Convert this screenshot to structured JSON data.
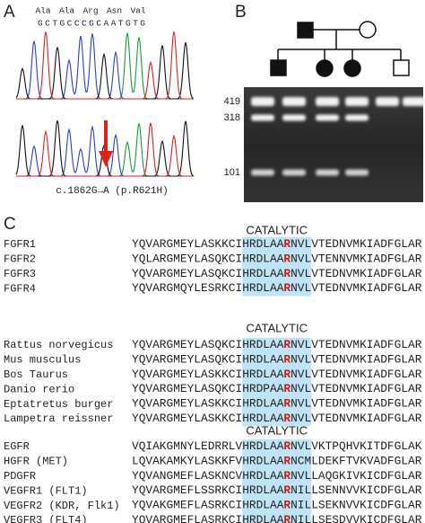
{
  "panels": {
    "a": {
      "label": "A",
      "amino_acids": [
        "Ala",
        "Ala",
        "Arg",
        "Asn",
        "Val"
      ],
      "sequence": "G C T G C C C G C A A T G T G",
      "caption": "c.1862G→A (p.R621H)"
    },
    "b": {
      "label": "B",
      "gel_markers": [
        "419",
        "318",
        "101"
      ]
    },
    "c": {
      "label": "C",
      "blocks": [
        {
          "heading": "CATALYTIC",
          "rows": [
            {
              "name": "FGFR1",
              "sequence": "YQVARGMEYLASKKCIHRDLAARNVLVTEDNVMKIADFGLAR"
            },
            {
              "name": "FGFR2",
              "sequence": "YQLARGMEYLASQKCIHRDLAARNVLVTENNVMKIADFGLAR"
            },
            {
              "name": "FGFR3",
              "sequence": "YQVARGMEYLASQKCIHRDLAARNVLVTEDNVMKIADFGLAR"
            },
            {
              "name": "FGFR4",
              "sequence": "YQVARGMQYLESRKCIHRDLAARNVLVTEDNVMKIADFGLAR"
            }
          ]
        },
        {
          "heading": "CATALYTIC",
          "rows": [
            {
              "name": "Rattus norvegicus",
              "sequence": "YQVARGMEYLASQKCIHRDLAARNVLVTEDNVMKIADFGLAR"
            },
            {
              "name": "Mus musculus",
              "sequence": "YQVARGMEYLASQKCIHRDLAARNVLVTEDNVMKIADFGLAR"
            },
            {
              "name": "Bos Taurus",
              "sequence": "YQVARGMEYLASKKCIHRDLAARNVLVTEDNVMKIADFGLAR"
            },
            {
              "name": "Danio rerio",
              "sequence": "YQVARGMEYLASQKCIHRDPAARNVLVTEDNVMKIADFGLAR"
            },
            {
              "name": "Eptatretus burger",
              "sequence": "YQVARGMEYLASKKCIHRDLAARNVLVTEDNVMKIADFGLAR"
            },
            {
              "name": "Lampetra reissner",
              "sequence": "YQVARGMEYLASKKCIHRDLAARNVLVTEDNVMKIADFGLAR"
            }
          ]
        },
        {
          "heading": "CATALYTIC",
          "rows": [
            {
              "name": "EGFR",
              "sequence": "VQIAKGMNYLEDRRLVHRDLAARNVLVKTPQHVKITDFGLAK"
            },
            {
              "name": "HGFR (MET)",
              "sequence": "LQVAKAMKYLASKKFVHRDLAARNCMLDEKFTVKVADFGLAR"
            },
            {
              "name": "PDGFR",
              "sequence": "YQVANGMEFLASKNCVHRDLAARNVLLAQGKIVKICDFGLAR"
            },
            {
              "name": "VEGFR1 (FLT1)",
              "sequence": "YQVARGMEFLSSRKCIHRDLAARNILLSENNVVKICDFGLAR"
            },
            {
              "name": "VEGFR2 (KDR, Flk1)",
              "sequence": "YQVAKGMEFLASRKCIHRDLAARNILLSEKNVVKICDFGLAR"
            },
            {
              "name": "VEGFR3 (FLT4)",
              "sequence": "YQVARGMEFLASRKCIHRDLAARNILLSESDVVKICDFGLAR"
            }
          ]
        }
      ]
    }
  }
}
